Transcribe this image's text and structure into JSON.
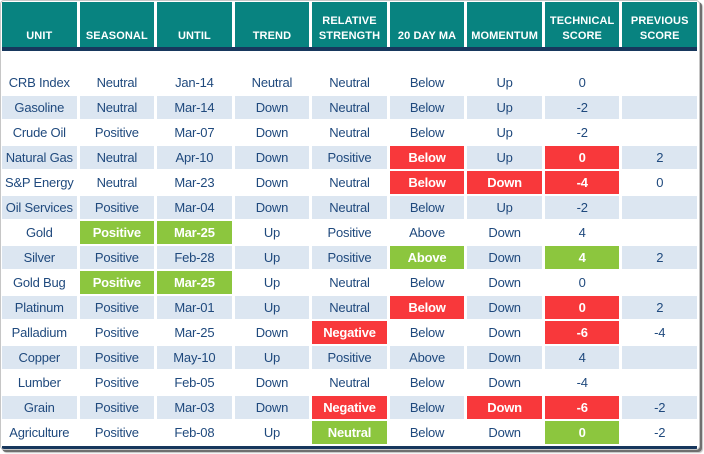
{
  "colors": {
    "header_bg": "#088380",
    "divider_navy": "#17375D",
    "body_text": "#1F497D",
    "row_alternate": "#DCE6F1",
    "highlight_red": "#F8383B",
    "highlight_green": "#8CC63E"
  },
  "table": {
    "headers": [
      "UNIT",
      "SEASONAL",
      "UNTIL",
      "TREND",
      "RELATIVE STRENGTH",
      "20 DAY MA",
      "MOMENTUM",
      "TECHNICAL SCORE",
      "PREVIOUS SCORE"
    ],
    "rows": [
      {
        "cells": [
          {
            "t": "CRB Index"
          },
          {
            "t": "Neutral"
          },
          {
            "t": "Jan-14"
          },
          {
            "t": "Neutral"
          },
          {
            "t": "Neutral"
          },
          {
            "t": "Below"
          },
          {
            "t": "Up"
          },
          {
            "t": "0"
          },
          {
            "t": ""
          }
        ]
      },
      {
        "cells": [
          {
            "t": "Gasoline"
          },
          {
            "t": "Neutral"
          },
          {
            "t": "Mar-14"
          },
          {
            "t": "Down"
          },
          {
            "t": "Neutral"
          },
          {
            "t": "Below"
          },
          {
            "t": "Up"
          },
          {
            "t": "-2"
          },
          {
            "t": ""
          }
        ]
      },
      {
        "cells": [
          {
            "t": "Crude Oil"
          },
          {
            "t": "Positive"
          },
          {
            "t": "Mar-07"
          },
          {
            "t": "Down"
          },
          {
            "t": "Neutral"
          },
          {
            "t": "Below"
          },
          {
            "t": "Up"
          },
          {
            "t": "-2"
          },
          {
            "t": ""
          }
        ]
      },
      {
        "cells": [
          {
            "t": "Natural Gas"
          },
          {
            "t": "Neutral"
          },
          {
            "t": "Apr-10"
          },
          {
            "t": "Down"
          },
          {
            "t": "Positive"
          },
          {
            "t": "Below",
            "h": "red"
          },
          {
            "t": "Up"
          },
          {
            "t": "0",
            "h": "red"
          },
          {
            "t": "2"
          }
        ]
      },
      {
        "cells": [
          {
            "t": "S&P Energy"
          },
          {
            "t": "Neutral"
          },
          {
            "t": "Mar-23"
          },
          {
            "t": "Down"
          },
          {
            "t": "Neutral"
          },
          {
            "t": "Below",
            "h": "red"
          },
          {
            "t": "Down",
            "h": "red"
          },
          {
            "t": "-4",
            "h": "red"
          },
          {
            "t": "0"
          }
        ]
      },
      {
        "cells": [
          {
            "t": "Oil Services"
          },
          {
            "t": "Positive"
          },
          {
            "t": "Mar-04"
          },
          {
            "t": "Down"
          },
          {
            "t": "Neutral"
          },
          {
            "t": "Below"
          },
          {
            "t": "Up"
          },
          {
            "t": "-2"
          },
          {
            "t": ""
          }
        ]
      },
      {
        "cells": [
          {
            "t": "Gold"
          },
          {
            "t": "Positive",
            "h": "green"
          },
          {
            "t": "Mar-25",
            "h": "green"
          },
          {
            "t": "Up"
          },
          {
            "t": "Positive"
          },
          {
            "t": "Above"
          },
          {
            "t": "Down"
          },
          {
            "t": "4"
          },
          {
            "t": ""
          }
        ]
      },
      {
        "cells": [
          {
            "t": "Silver"
          },
          {
            "t": "Positive"
          },
          {
            "t": "Feb-28"
          },
          {
            "t": "Up"
          },
          {
            "t": "Positive"
          },
          {
            "t": "Above",
            "h": "green"
          },
          {
            "t": "Down"
          },
          {
            "t": "4",
            "h": "green"
          },
          {
            "t": "2"
          }
        ]
      },
      {
        "cells": [
          {
            "t": "Gold Bug"
          },
          {
            "t": "Positive",
            "h": "green"
          },
          {
            "t": "Mar-25",
            "h": "green"
          },
          {
            "t": "Up"
          },
          {
            "t": "Neutral"
          },
          {
            "t": "Below"
          },
          {
            "t": "Down"
          },
          {
            "t": "0"
          },
          {
            "t": ""
          }
        ]
      },
      {
        "cells": [
          {
            "t": "Platinum"
          },
          {
            "t": "Positive"
          },
          {
            "t": "Mar-01"
          },
          {
            "t": "Up"
          },
          {
            "t": "Neutral"
          },
          {
            "t": "Below",
            "h": "red"
          },
          {
            "t": "Down"
          },
          {
            "t": "0",
            "h": "red"
          },
          {
            "t": "2"
          }
        ]
      },
      {
        "cells": [
          {
            "t": "Palladium"
          },
          {
            "t": "Positive"
          },
          {
            "t": "Mar-25"
          },
          {
            "t": "Down"
          },
          {
            "t": "Negative",
            "h": "red"
          },
          {
            "t": "Below"
          },
          {
            "t": "Down"
          },
          {
            "t": "-6",
            "h": "red"
          },
          {
            "t": "-4"
          }
        ]
      },
      {
        "cells": [
          {
            "t": "Copper"
          },
          {
            "t": "Positive"
          },
          {
            "t": "May-10"
          },
          {
            "t": "Up"
          },
          {
            "t": "Positive"
          },
          {
            "t": "Above"
          },
          {
            "t": "Down"
          },
          {
            "t": "4"
          },
          {
            "t": ""
          }
        ]
      },
      {
        "cells": [
          {
            "t": "Lumber"
          },
          {
            "t": "Positive"
          },
          {
            "t": "Feb-05"
          },
          {
            "t": "Down"
          },
          {
            "t": "Neutral"
          },
          {
            "t": "Below"
          },
          {
            "t": "Down"
          },
          {
            "t": "-4"
          },
          {
            "t": ""
          }
        ]
      },
      {
        "cells": [
          {
            "t": "Grain"
          },
          {
            "t": "Positive"
          },
          {
            "t": "Mar-03"
          },
          {
            "t": "Down"
          },
          {
            "t": "Negative",
            "h": "red"
          },
          {
            "t": "Below"
          },
          {
            "t": "Down",
            "h": "red"
          },
          {
            "t": "-6",
            "h": "red"
          },
          {
            "t": "-2"
          }
        ]
      },
      {
        "cells": [
          {
            "t": "Agriculture"
          },
          {
            "t": "Positive"
          },
          {
            "t": "Feb-08"
          },
          {
            "t": "Up"
          },
          {
            "t": "Neutral",
            "h": "green"
          },
          {
            "t": "Below"
          },
          {
            "t": "Down"
          },
          {
            "t": "0",
            "h": "green"
          },
          {
            "t": "-2"
          }
        ]
      }
    ]
  }
}
